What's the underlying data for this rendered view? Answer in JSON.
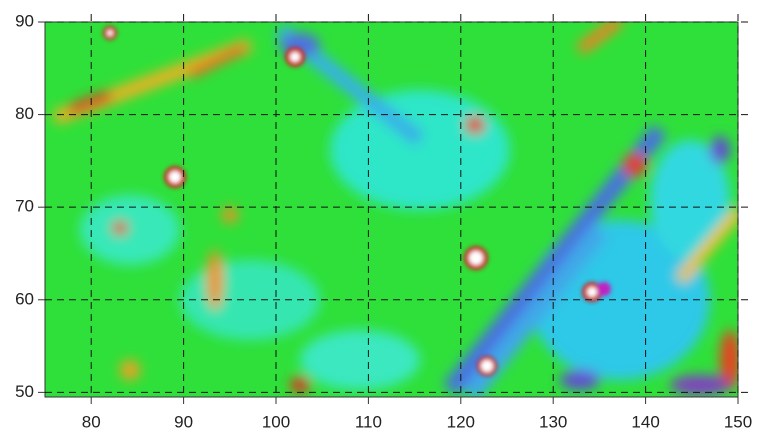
{
  "chart_data": {
    "type": "heatmap",
    "xlim": [
      75,
      150
    ],
    "ylim": [
      49.5,
      90
    ],
    "xticks": [
      80,
      90,
      100,
      110,
      120,
      130,
      140,
      150
    ],
    "yticks": [
      50,
      60,
      70,
      80,
      90
    ],
    "grid": true
  }
}
